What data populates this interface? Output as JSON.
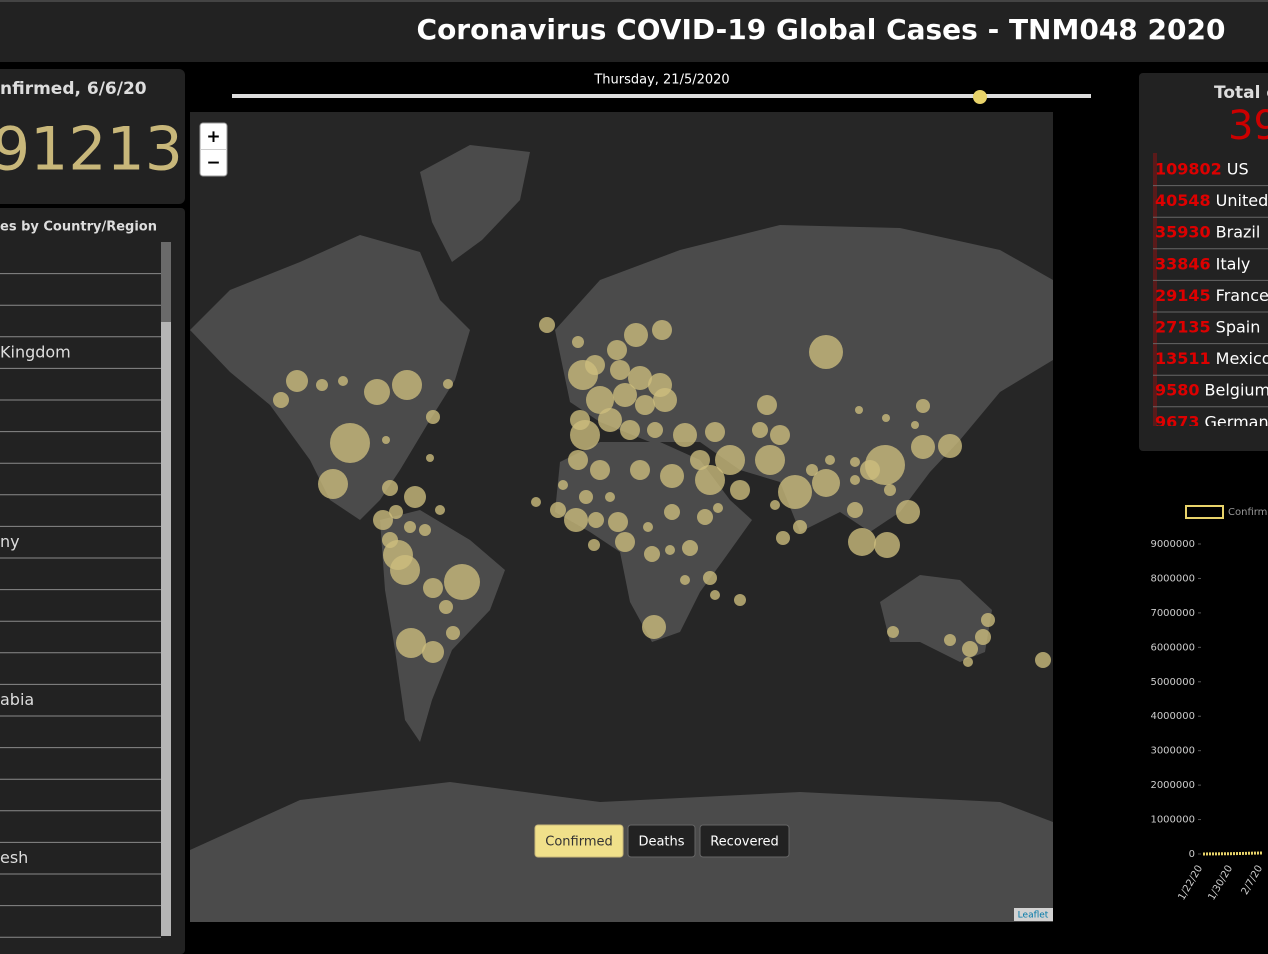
{
  "header": {
    "title": "Coronavirus COVID-19 Global Cases - TNM048 2020"
  },
  "left_panel": {
    "title": "nfirmed, 6/6/20",
    "total": 91213
  },
  "country_list": {
    "title": "es by Country/Region",
    "rows": [
      null,
      null,
      null,
      "Kingdom",
      null,
      null,
      null,
      null,
      null,
      "ny",
      null,
      null,
      null,
      null,
      "abia",
      null,
      null,
      null,
      null,
      "esh",
      null,
      null
    ]
  },
  "slider": {
    "date": "Thursday, 21/5/2020"
  },
  "map": {
    "zoom_in": "+",
    "zoom_out": "−",
    "attribution": "Leaflet",
    "buttons": [
      "Confirmed",
      "Deaths",
      "Recovered"
    ]
  },
  "right_panel": {
    "title": "Total c",
    "total": 39,
    "rows": [
      {
        "value": 109802,
        "name": "US"
      },
      {
        "value": 40548,
        "name": "United I"
      },
      {
        "value": 35930,
        "name": "Brazil"
      },
      {
        "value": 33846,
        "name": "Italy"
      },
      {
        "value": 29145,
        "name": "France"
      },
      {
        "value": 27135,
        "name": "Spain"
      },
      {
        "value": 13511,
        "name": "Mexico"
      },
      {
        "value": 9580,
        "name": "Belgium"
      },
      {
        "value": 9673,
        "name": "Germany"
      }
    ]
  },
  "chart_data": {
    "type": "line",
    "x": [
      "1/22/20",
      "1/30/20",
      "2/7/20"
    ],
    "series": [
      {
        "name": "Confirme",
        "color": "#e8d36a",
        "values": [
          555,
          9927,
          31211
        ]
      }
    ],
    "ylim": [
      0,
      9000000
    ],
    "yticks": [
      0,
      1000000,
      2000000,
      3000000,
      4000000,
      5000000,
      6000000,
      7000000,
      8000000,
      9000000
    ]
  }
}
